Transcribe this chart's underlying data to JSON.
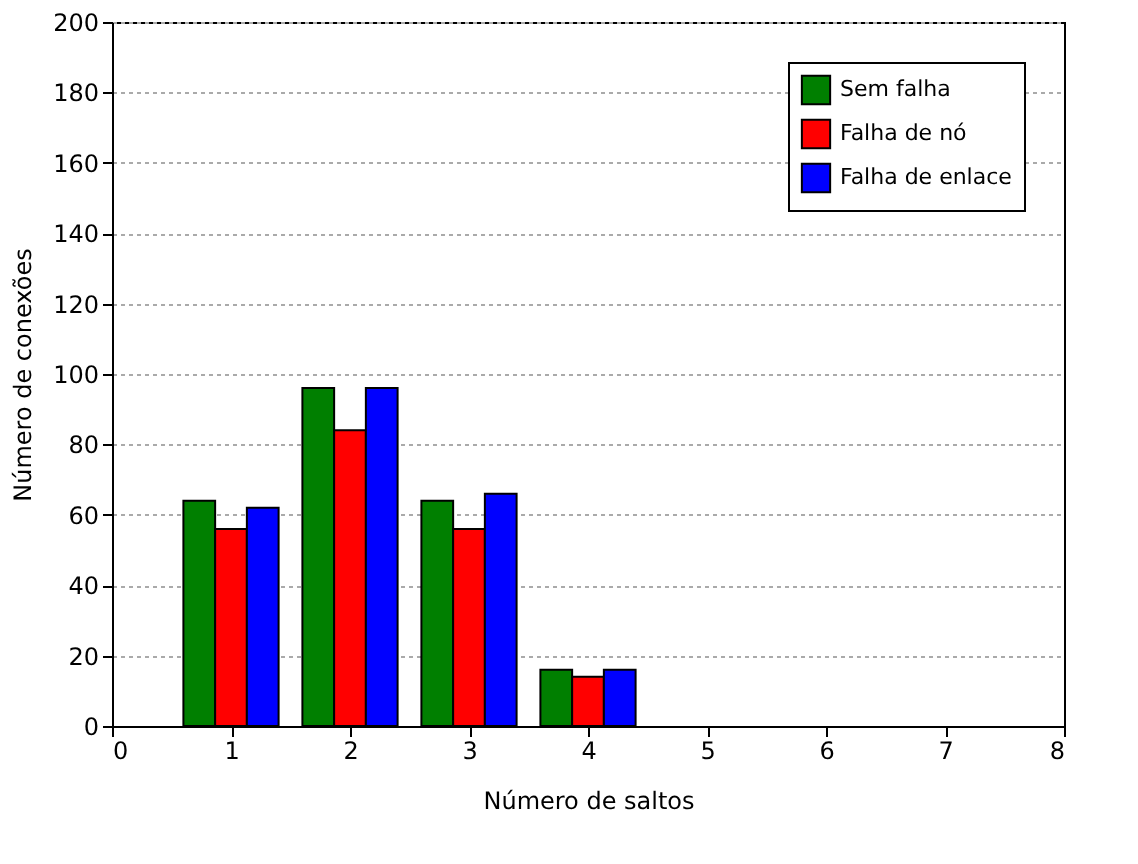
{
  "chart_data": {
    "type": "bar",
    "xlabel": "Número de saltos",
    "ylabel": "Número de conexões",
    "x": [
      1,
      2,
      3,
      4
    ],
    "series": [
      {
        "name": "Sem falha",
        "color": "#007f00",
        "values": [
          64,
          96,
          64,
          16
        ]
      },
      {
        "name": "Falha de nó",
        "color": "#ff0000",
        "values": [
          56,
          84,
          56,
          14
        ]
      },
      {
        "name": "Falha de enlace",
        "color": "#0000ff",
        "values": [
          62,
          96,
          66,
          16
        ]
      }
    ],
    "xlim": [
      0,
      8
    ],
    "xticks": [
      0,
      1,
      2,
      3,
      4,
      5,
      6,
      7,
      8
    ],
    "ylim": [
      0,
      200
    ],
    "yticks": [
      0,
      20,
      40,
      60,
      80,
      100,
      120,
      140,
      160,
      180,
      200
    ],
    "grid": "y",
    "legend": "top right"
  }
}
